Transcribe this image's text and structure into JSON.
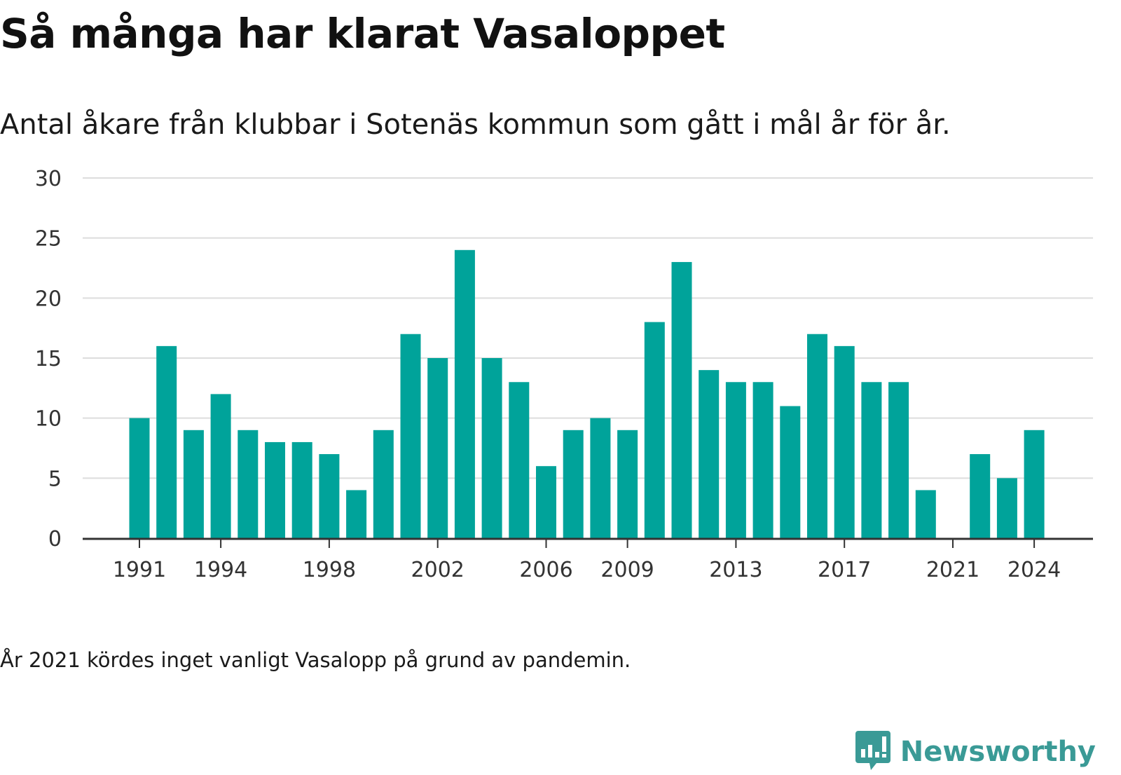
{
  "title": "Så många har klarat Vasaloppet",
  "subtitle": "Antal åkare från klubbar i Sotenäs kommun som gått i mål år för år.",
  "footnote": "År 2021 kördes inget vanligt Vasalopp på grund av pandemin.",
  "brand": {
    "name": "Newsworthy",
    "color": "#3a9a96",
    "icon": "bar-chart-speech-bubble-icon"
  },
  "colors": {
    "bar": "#00a39a",
    "grid": "#dddddd",
    "axis": "#333333"
  },
  "chart_data": {
    "type": "bar",
    "categories": [
      "1991",
      "1992",
      "1993",
      "1994",
      "1995",
      "1996",
      "1997",
      "1998",
      "1999",
      "2000",
      "2001",
      "2002",
      "2003",
      "2004",
      "2005",
      "2006",
      "2007",
      "2008",
      "2009",
      "2010",
      "2011",
      "2012",
      "2013",
      "2014",
      "2015",
      "2016",
      "2017",
      "2018",
      "2019",
      "2020",
      "2021",
      "2022",
      "2023",
      "2024"
    ],
    "values": [
      10,
      16,
      9,
      12,
      9,
      8,
      8,
      7,
      4,
      9,
      17,
      15,
      24,
      15,
      13,
      6,
      9,
      10,
      9,
      18,
      23,
      14,
      13,
      13,
      11,
      17,
      16,
      13,
      13,
      4,
      0,
      7,
      5,
      9
    ],
    "x_tick_labels": [
      "1991",
      "1994",
      "1998",
      "2002",
      "2006",
      "2009",
      "2013",
      "2017",
      "2021",
      "2024"
    ],
    "y_ticks": [
      0,
      5,
      10,
      15,
      20,
      25,
      30
    ],
    "ylim": [
      0,
      30
    ],
    "xlabel": "",
    "ylabel": "",
    "grid": true,
    "legend": "none"
  }
}
